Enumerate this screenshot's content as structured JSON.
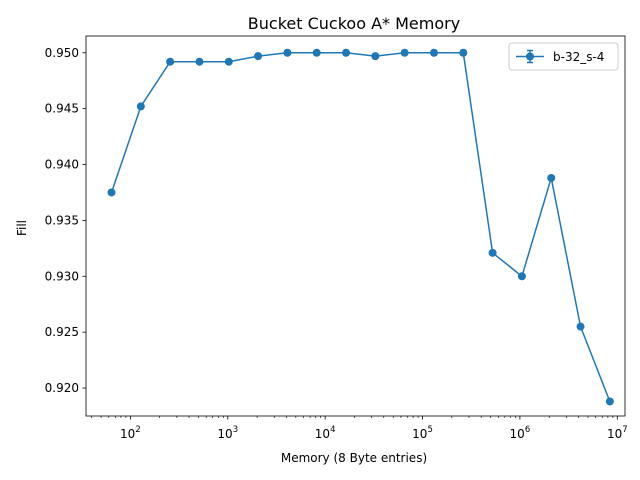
{
  "chart_data": {
    "type": "line",
    "title": "Bucket Cuckoo A* Memory",
    "xlabel": "Memory (8 Byte entries)",
    "ylabel": "Fill",
    "xscale": "log",
    "xlim": [
      35,
      12000000
    ],
    "ylim": [
      0.9175,
      0.9515
    ],
    "grid": false,
    "legend": "top-right",
    "x_ticks": [
      {
        "value": 100,
        "base": "10",
        "exp": "2"
      },
      {
        "value": 1000,
        "base": "10",
        "exp": "3"
      },
      {
        "value": 10000,
        "base": "10",
        "exp": "4"
      },
      {
        "value": 100000,
        "base": "10",
        "exp": "5"
      },
      {
        "value": 1000000,
        "base": "10",
        "exp": "6"
      },
      {
        "value": 10000000,
        "base": "10",
        "exp": "7"
      }
    ],
    "y_ticks": [
      "0.920",
      "0.925",
      "0.930",
      "0.935",
      "0.940",
      "0.945",
      "0.950"
    ],
    "series": [
      {
        "name": "b-32_s-4",
        "color": "#1f77b4",
        "marker": "circle",
        "x": [
          64,
          128,
          256,
          512,
          1024,
          2048,
          4096,
          8192,
          16384,
          32768,
          65536,
          131072,
          262144,
          524288,
          1048576,
          2097152,
          4194304,
          8388608
        ],
        "y": [
          0.9375,
          0.9452,
          0.9492,
          0.9492,
          0.9492,
          0.9497,
          0.95,
          0.95,
          0.95,
          0.9497,
          0.95,
          0.95,
          0.95,
          0.9321,
          0.93,
          0.9388,
          0.9255,
          0.9188
        ]
      }
    ]
  }
}
